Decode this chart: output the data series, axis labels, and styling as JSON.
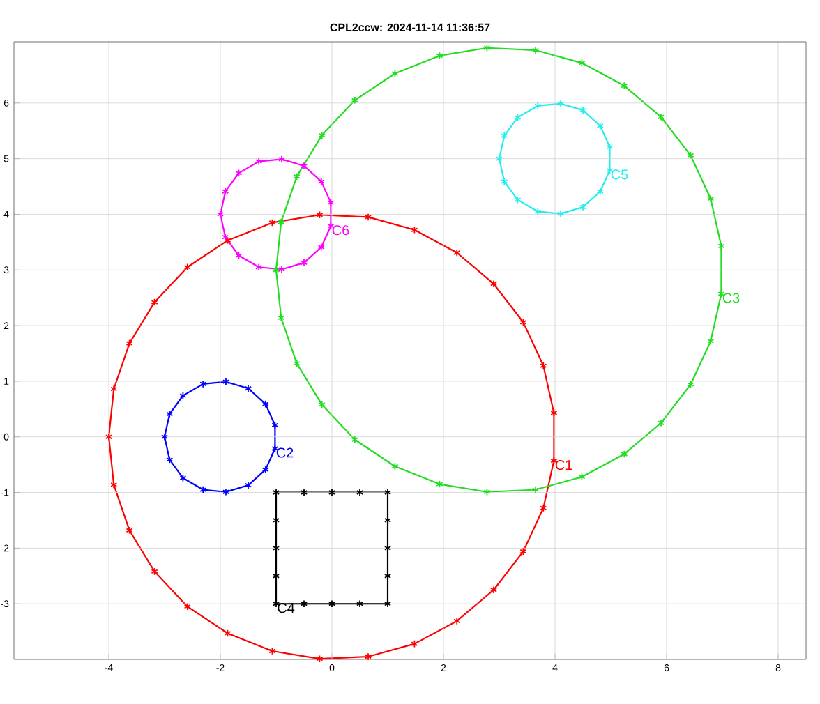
{
  "chart_data": {
    "type": "scatter",
    "title": "CPL2ccw: 2024-11-14 11:36:57",
    "xlim": [
      -5.7,
      8.5
    ],
    "ylim": [
      -4,
      7.1
    ],
    "xticks": [
      -4,
      -2,
      0,
      2,
      4,
      6,
      8
    ],
    "yticks": [
      -3,
      -2,
      -1,
      0,
      1,
      2,
      3,
      4,
      5,
      6
    ],
    "grid": true,
    "marker": "cross",
    "series": [
      {
        "color": "#ff0000",
        "x": [
          -4.0,
          -3.91,
          -3.63,
          -3.18,
          -2.59,
          -1.87,
          -1.07,
          -0.22,
          0.65,
          1.48,
          2.24,
          2.9,
          3.43,
          3.79,
          3.98,
          3.98,
          3.79,
          3.43,
          2.9,
          2.24,
          1.48,
          0.65,
          -0.22,
          -1.07,
          -1.87,
          -2.59,
          -3.18,
          -3.63,
          -3.91
        ],
        "values": [
          0.0,
          -0.86,
          -1.68,
          -2.42,
          -3.05,
          -3.53,
          -3.85,
          -3.99,
          -3.95,
          -3.72,
          -3.31,
          -2.75,
          -2.06,
          -1.28,
          -0.43,
          0.43,
          1.28,
          2.06,
          2.75,
          3.31,
          3.72,
          3.95,
          3.99,
          3.85,
          3.53,
          3.05,
          2.42,
          1.68,
          0.86
        ]
      },
      {
        "color": "#0000ff",
        "x": [
          -3.0,
          -2.91,
          -2.67,
          -2.31,
          -1.9,
          -1.5,
          -1.19,
          -1.02,
          -1.02,
          -1.19,
          -1.5,
          -1.9,
          -2.31,
          -2.67,
          -2.91
        ],
        "values": [
          0.0,
          -0.41,
          -0.74,
          -0.95,
          -0.99,
          -0.87,
          -0.59,
          -0.21,
          0.21,
          0.59,
          0.87,
          0.99,
          0.95,
          0.74,
          0.41
        ]
      },
      {
        "color": "#22dd22",
        "x": [
          -1.0,
          -0.91,
          -0.63,
          -0.18,
          0.41,
          1.13,
          1.93,
          2.78,
          3.65,
          4.48,
          5.24,
          5.9,
          6.43,
          6.79,
          6.98,
          6.98,
          6.79,
          6.43,
          5.9,
          5.24,
          4.48,
          3.65,
          2.78,
          1.93,
          1.13,
          0.41,
          -0.18,
          -0.63,
          -0.91
        ],
        "values": [
          3.0,
          2.14,
          1.32,
          0.58,
          -0.05,
          -0.53,
          -0.85,
          -0.99,
          -0.95,
          -0.72,
          -0.31,
          0.25,
          0.94,
          1.72,
          2.57,
          3.43,
          4.28,
          5.06,
          5.75,
          6.31,
          6.72,
          6.95,
          6.99,
          6.85,
          6.53,
          6.05,
          5.42,
          4.68,
          3.86
        ]
      },
      {
        "color": "#000000",
        "x": [
          -1,
          -0.5,
          0,
          0.5,
          1,
          1,
          1,
          1,
          1,
          0.5,
          0,
          -0.5,
          -1,
          -1,
          -1,
          -1
        ],
        "values": [
          -3,
          -3,
          -3,
          -3,
          -3,
          -2.5,
          -2,
          -1.5,
          -1,
          -1,
          -1,
          -1,
          -1,
          -1.5,
          -2,
          -2.5
        ]
      },
      {
        "color": "#22eeee",
        "x": [
          3.0,
          3.09,
          3.33,
          3.69,
          4.1,
          4.5,
          4.81,
          4.98,
          4.98,
          4.81,
          4.5,
          4.1,
          3.69,
          3.33,
          3.09
        ],
        "values": [
          5.0,
          4.59,
          4.26,
          4.05,
          4.01,
          4.13,
          4.41,
          4.79,
          5.21,
          5.59,
          5.87,
          5.99,
          5.95,
          5.74,
          5.41
        ]
      },
      {
        "color": "#ff00ff",
        "x": [
          -2.0,
          -1.91,
          -1.67,
          -1.31,
          -0.9,
          -0.5,
          -0.19,
          -0.02,
          -0.02,
          -0.19,
          -0.5,
          -0.9,
          -1.31,
          -1.67,
          -1.91
        ],
        "values": [
          4.0,
          3.59,
          3.26,
          3.05,
          3.01,
          3.13,
          3.41,
          3.79,
          4.21,
          4.59,
          4.87,
          4.99,
          4.95,
          4.74,
          4.41
        ]
      }
    ],
    "annotations": [
      {
        "text": "C1",
        "x": 3.98,
        "y": -0.43
      },
      {
        "text": "C2",
        "x": -1.02,
        "y": -0.21
      },
      {
        "text": "C3",
        "x": 6.98,
        "y": 2.57
      },
      {
        "text": "C4",
        "x": -1,
        "y": -3
      },
      {
        "text": "C5",
        "x": 4.98,
        "y": 4.79
      },
      {
        "text": "C6",
        "x": -0.02,
        "y": 3.79
      }
    ]
  }
}
